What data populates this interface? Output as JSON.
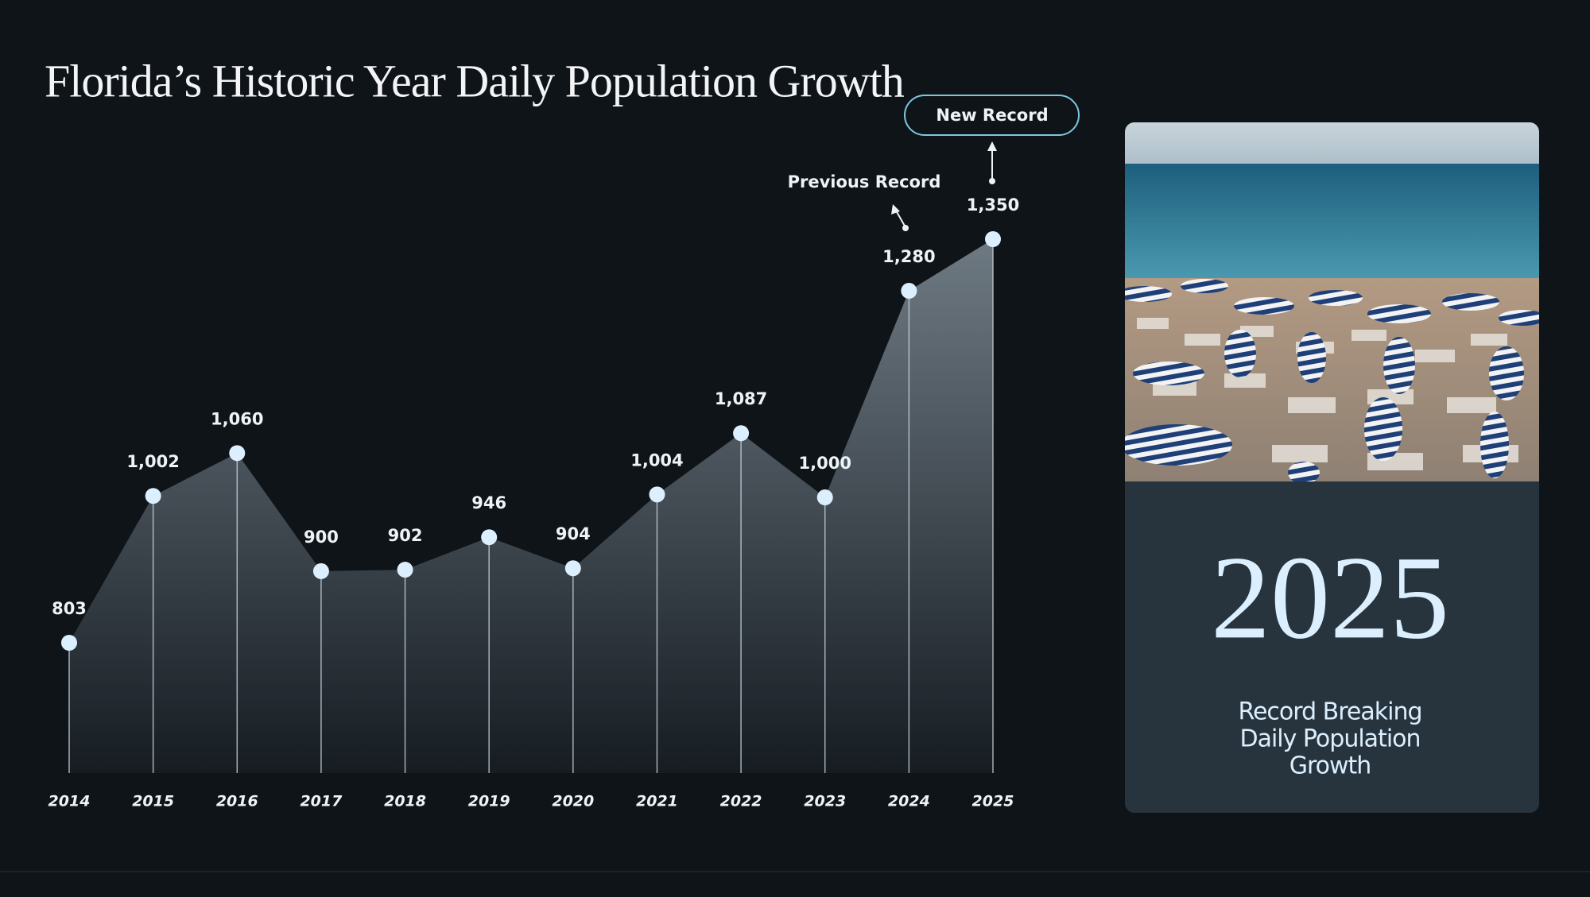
{
  "chart_data": {
    "type": "area",
    "title": "Florida’s Historic Year Daily Population Growth",
    "categories": [
      "2014",
      "2015",
      "2016",
      "2017",
      "2018",
      "2019",
      "2020",
      "2021",
      "2022",
      "2023",
      "2024",
      "2025"
    ],
    "values": [
      803,
      1002,
      1060,
      900,
      902,
      946,
      904,
      1004,
      1087,
      1000,
      1280,
      1350
    ],
    "value_labels": [
      "803",
      "1,002",
      "1,060",
      "900",
      "902",
      "946",
      "904",
      "1,004",
      "1,087",
      "1,000",
      "1,280",
      "1,350"
    ],
    "color": "#dcefff",
    "annotations": [
      "Previous Record",
      "New Record"
    ]
  },
  "panel": {
    "heading": "2025",
    "caption": [
      "Record Breaking",
      "Daily Population",
      "Growth"
    ]
  }
}
